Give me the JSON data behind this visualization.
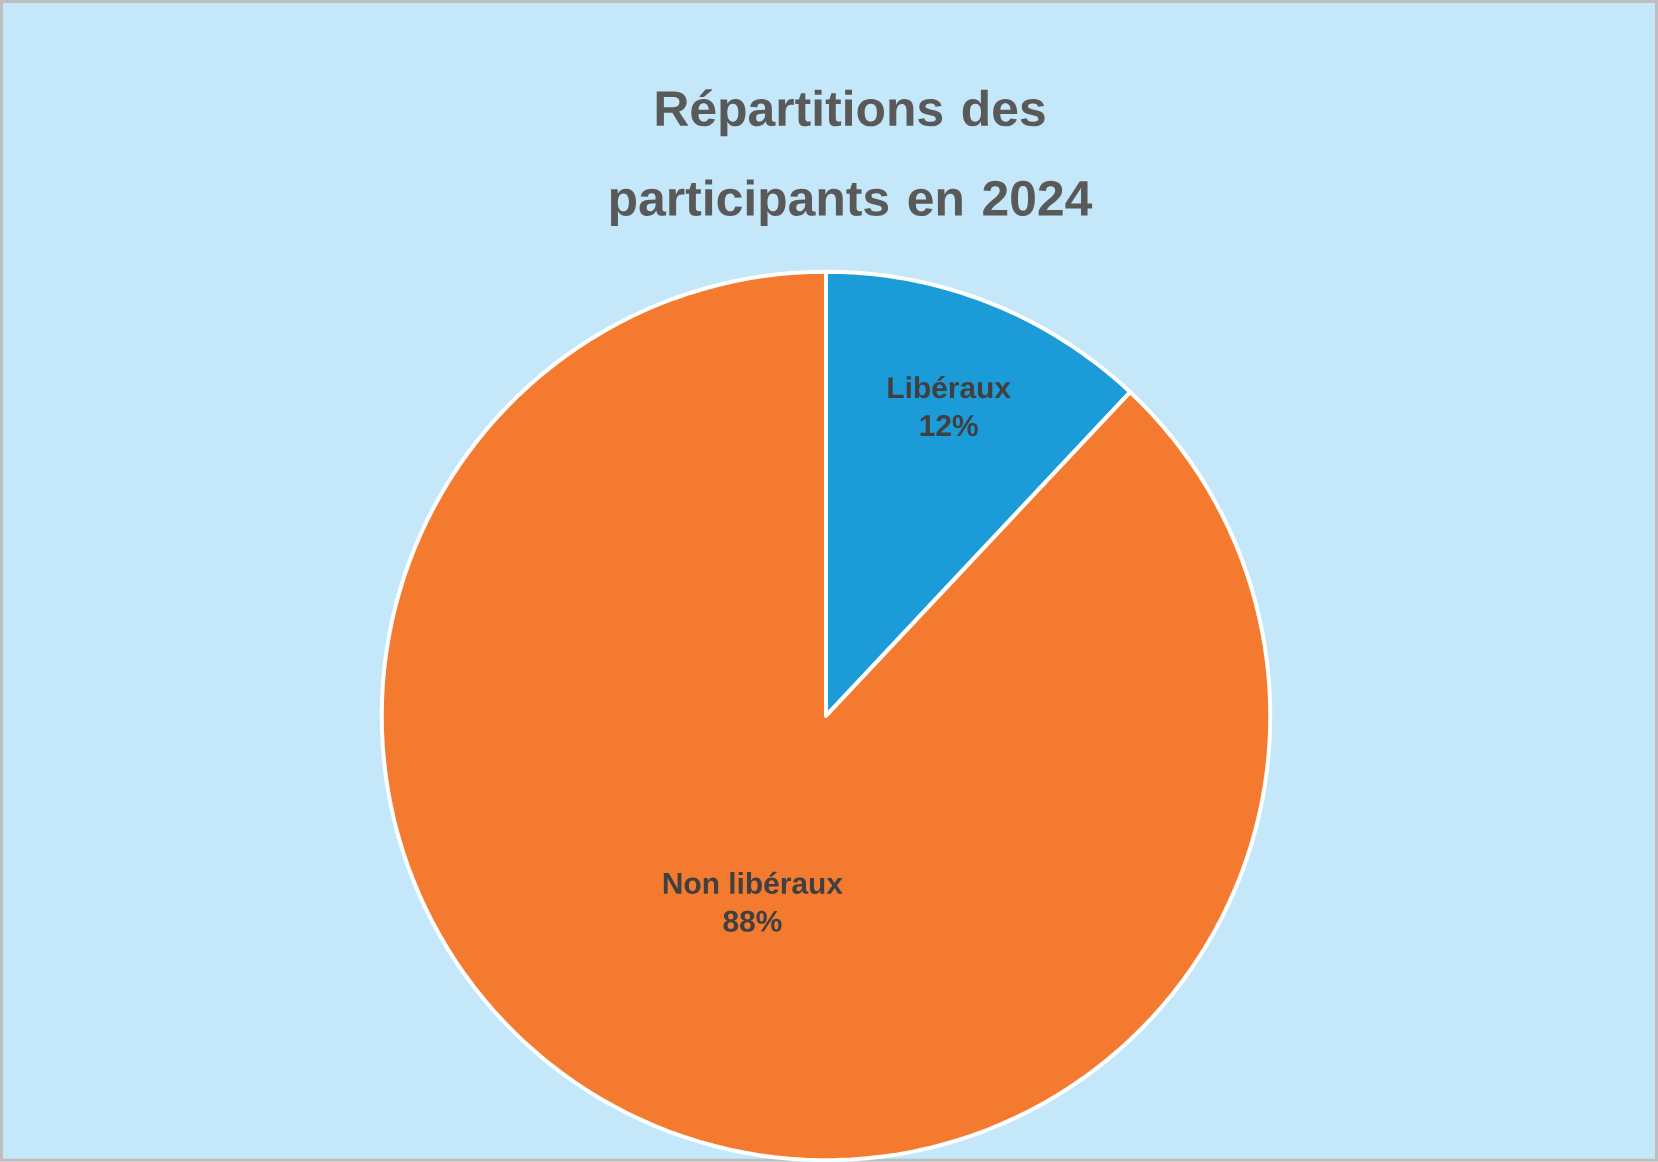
{
  "chart_data": {
    "type": "pie",
    "title": "Répartitions des participants en 2024",
    "categories": [
      "Libéraux",
      "Non libéraux"
    ],
    "values": [
      12,
      88
    ],
    "colors": [
      "#1b9bd7",
      "#f47a30"
    ],
    "value_labels": [
      "12%",
      "88%"
    ]
  }
}
